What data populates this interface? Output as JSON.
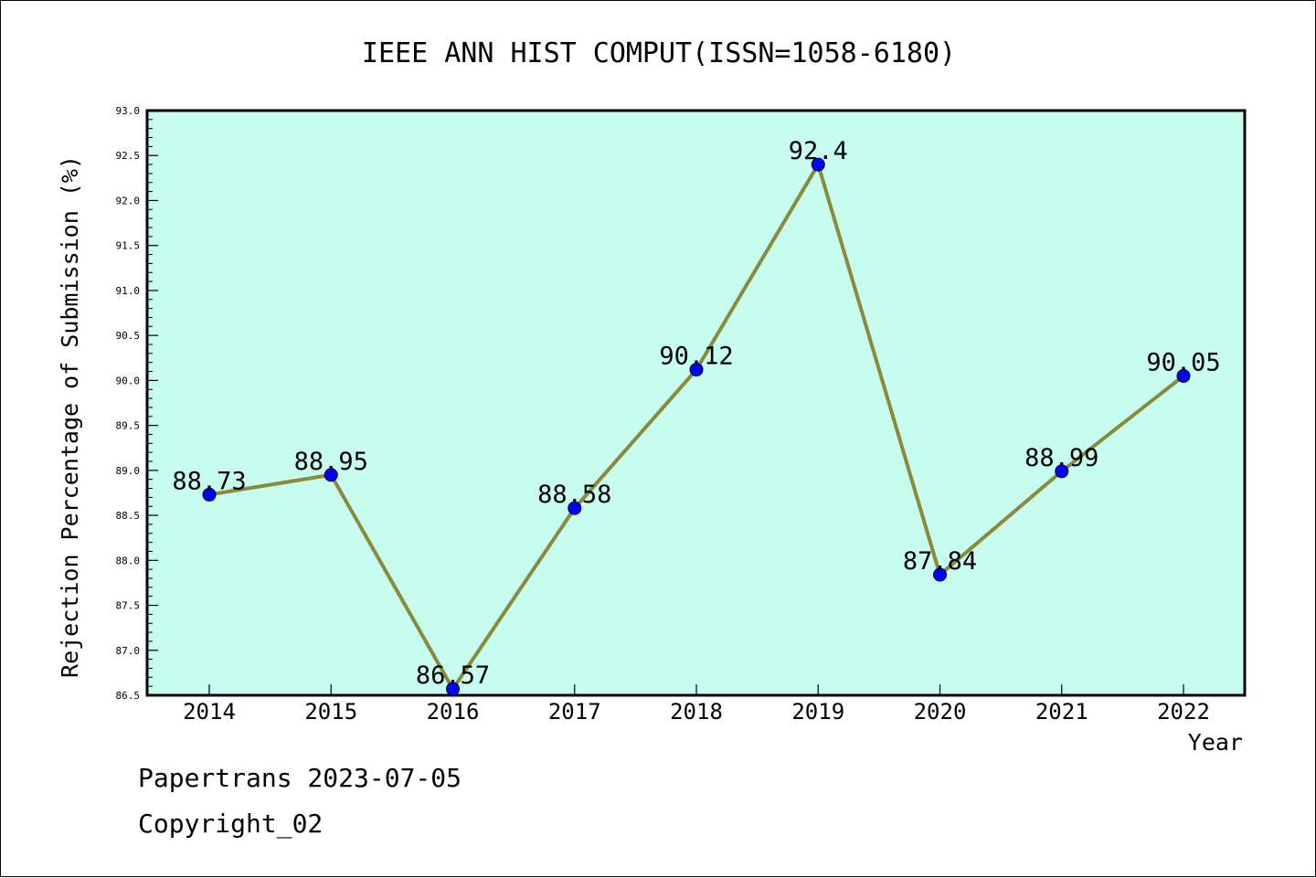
{
  "chart_data": {
    "type": "line",
    "title": "IEEE ANN HIST COMPUT(ISSN=1058-6180)",
    "xlabel": "Year",
    "ylabel": "Rejection Percentage of Submission (%)",
    "categories": [
      "2014",
      "2015",
      "2016",
      "2017",
      "2018",
      "2019",
      "2020",
      "2021",
      "2022"
    ],
    "values": [
      88.73,
      88.95,
      86.57,
      88.58,
      90.12,
      92.4,
      87.84,
      88.99,
      90.05
    ],
    "data_labels": [
      "88.73",
      "88.95",
      "86.57",
      "88.58",
      "90.12",
      "92.4",
      "87.84",
      "88.99",
      "90.05"
    ],
    "ylim": [
      86.5,
      93.0
    ],
    "yticks": [
      "86.5",
      "87.0",
      "87.5",
      "88.0",
      "88.5",
      "89.0",
      "89.5",
      "90.0",
      "90.5",
      "91.0",
      "91.5",
      "92.0",
      "92.5",
      "93.0"
    ],
    "grid": false,
    "legend": "none",
    "colors": {
      "plot_background": "#c6fdee",
      "line": "#8b8a3a",
      "marker": "#0000ff",
      "text": "#000000"
    }
  },
  "footer": {
    "line1": "Papertrans 2023-07-05",
    "line2": "Copyright_02"
  }
}
